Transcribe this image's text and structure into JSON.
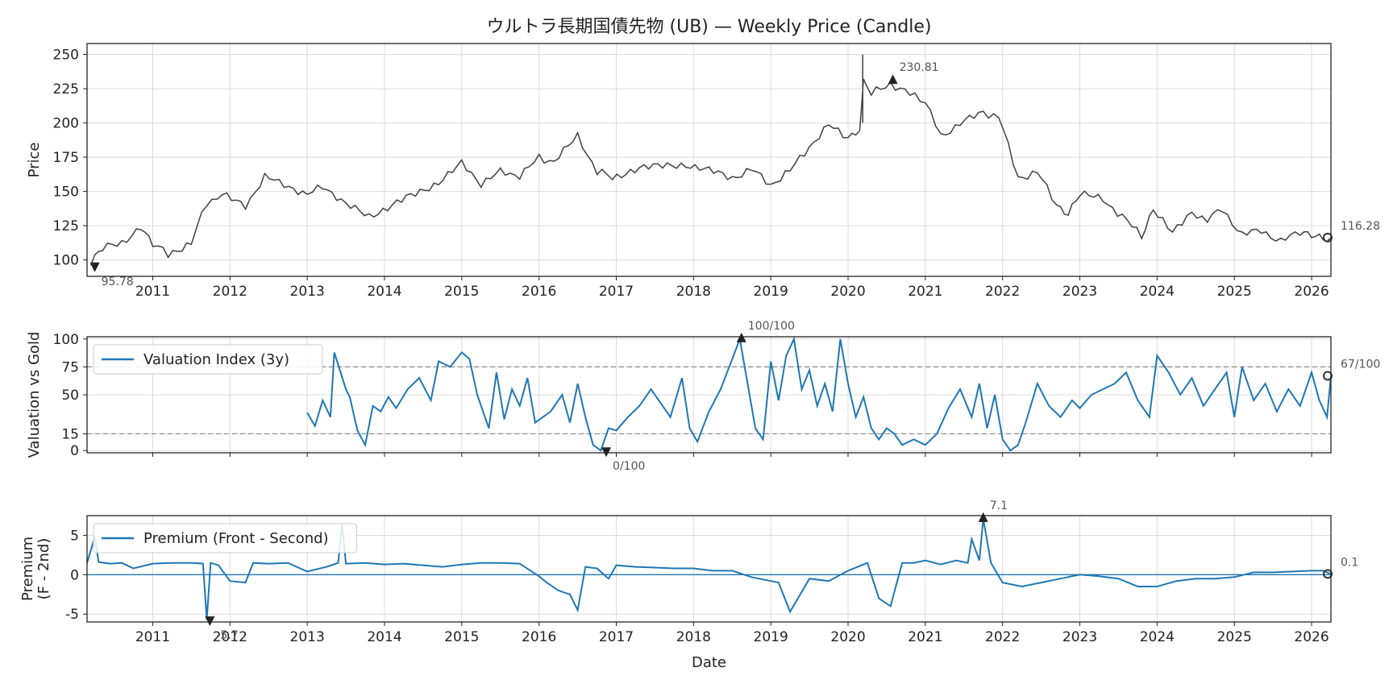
{
  "chart_data": [
    {
      "type": "candlestick",
      "title": "ウルトラ長期国債先物 (UB) — Weekly Price (Candle)",
      "ylabel": "Price",
      "xlabel": "",
      "xlim": [
        2010.15,
        2026.25
      ],
      "ylim": [
        88,
        258
      ],
      "yticks": [
        100,
        125,
        150,
        175,
        200,
        225,
        250
      ],
      "xticks": [
        "2011",
        "2012",
        "2013",
        "2014",
        "2015",
        "2016",
        "2017",
        "2018",
        "2019",
        "2020",
        "2021",
        "2022",
        "2023",
        "2024",
        "2025",
        "2026"
      ],
      "grid": true,
      "color": "#404040",
      "series": [
        {
          "name": "Price",
          "x": [
            2010.2,
            2010.35,
            2010.6,
            2010.85,
            2011.0,
            2011.2,
            2011.5,
            2011.7,
            2011.9,
            2012.2,
            2012.45,
            2012.7,
            2013.0,
            2013.2,
            2013.5,
            2013.8,
            2014.1,
            2014.4,
            2014.7,
            2015.0,
            2015.25,
            2015.5,
            2015.75,
            2016.0,
            2016.2,
            2016.5,
            2016.75,
            2016.95,
            2017.3,
            2017.6,
            2017.9,
            2018.2,
            2018.5,
            2018.75,
            2019.0,
            2019.25,
            2019.5,
            2019.75,
            2020.0,
            2020.15,
            2020.2,
            2020.3,
            2020.55,
            2020.8,
            2021.0,
            2021.2,
            2021.45,
            2021.75,
            2021.95,
            2022.2,
            2022.45,
            2022.7,
            2022.85,
            2023.0,
            2023.3,
            2023.55,
            2023.8,
            2023.95,
            2024.2,
            2024.45,
            2024.65,
            2024.85,
            2025.1,
            2025.35,
            2025.6,
            2025.85,
            2026.0,
            2026.15,
            2026.25
          ],
          "values": [
            97,
            108,
            113,
            123,
            112,
            104,
            113,
            142,
            147,
            140,
            160,
            156,
            147,
            155,
            140,
            132,
            140,
            148,
            157,
            170,
            156,
            164,
            162,
            174,
            172,
            190,
            165,
            160,
            168,
            168,
            170,
            165,
            160,
            166,
            155,
            165,
            183,
            198,
            190,
            195,
            229,
            221,
            229,
            221,
            216,
            190,
            200,
            207,
            205,
            160,
            164,
            140,
            132,
            148,
            144,
            132,
            117,
            135,
            122,
            133,
            130,
            137,
            118,
            122,
            113,
            121,
            117,
            115,
            116.28
          ]
        }
      ],
      "annotations": [
        {
          "label": "230.81",
          "x": 2020.58,
          "y": 230.81,
          "marker": "max"
        },
        {
          "label": "95.78",
          "x": 2010.25,
          "y": 95.78,
          "marker": "min"
        },
        {
          "label": "116.28",
          "x": 2026.25,
          "y": 116.28,
          "marker": "last"
        }
      ]
    },
    {
      "type": "line",
      "ylabel": "Valuation vs Gold",
      "xlim": [
        2010.15,
        2026.25
      ],
      "ylim": [
        -2,
        102
      ],
      "yticks": [
        0,
        15,
        50,
        75,
        100
      ],
      "hlines": [
        15,
        75
      ],
      "grid": true,
      "legend": "top-left",
      "series": [
        {
          "name": "Valuation Index (3y)",
          "color": "#1f77b4",
          "x": [
            2013.0,
            2013.1,
            2013.2,
            2013.3,
            2013.35,
            2013.5,
            2013.55,
            2013.65,
            2013.75,
            2013.85,
            2013.95,
            2014.05,
            2014.15,
            2014.3,
            2014.45,
            2014.6,
            2014.7,
            2014.85,
            2015.0,
            2015.1,
            2015.2,
            2015.35,
            2015.45,
            2015.55,
            2015.65,
            2015.75,
            2015.85,
            2015.95,
            2016.05,
            2016.15,
            2016.3,
            2016.4,
            2016.5,
            2016.6,
            2016.7,
            2016.8,
            2016.9,
            2017.0,
            2017.15,
            2017.3,
            2017.45,
            2017.55,
            2017.7,
            2017.85,
            2017.95,
            2018.05,
            2018.2,
            2018.35,
            2018.5,
            2018.6,
            2018.7,
            2018.8,
            2018.9,
            2019.0,
            2019.1,
            2019.2,
            2019.3,
            2019.4,
            2019.5,
            2019.6,
            2019.7,
            2019.8,
            2019.9,
            2020.0,
            2020.1,
            2020.2,
            2020.3,
            2020.4,
            2020.5,
            2020.6,
            2020.7,
            2020.85,
            2021.0,
            2021.15,
            2021.3,
            2021.45,
            2021.6,
            2021.7,
            2021.8,
            2021.9,
            2022.0,
            2022.1,
            2022.2,
            2022.3,
            2022.45,
            2022.6,
            2022.75,
            2022.9,
            2023.0,
            2023.15,
            2023.3,
            2023.45,
            2023.6,
            2023.75,
            2023.9,
            2024.0,
            2024.15,
            2024.3,
            2024.45,
            2024.6,
            2024.75,
            2024.9,
            2025.0,
            2025.1,
            2025.25,
            2025.4,
            2025.55,
            2025.7,
            2025.85,
            2026.0,
            2026.1,
            2026.2,
            2026.25
          ],
          "values": [
            34,
            22,
            45,
            30,
            88,
            55,
            48,
            18,
            5,
            40,
            35,
            48,
            38,
            55,
            65,
            45,
            80,
            75,
            88,
            82,
            50,
            20,
            70,
            28,
            55,
            40,
            65,
            25,
            30,
            35,
            50,
            25,
            60,
            30,
            5,
            0,
            20,
            18,
            30,
            40,
            55,
            45,
            30,
            65,
            20,
            8,
            35,
            55,
            82,
            100,
            60,
            20,
            10,
            80,
            45,
            85,
            100,
            55,
            72,
            40,
            60,
            35,
            100,
            60,
            30,
            48,
            20,
            10,
            20,
            15,
            5,
            10,
            5,
            15,
            38,
            55,
            30,
            60,
            20,
            50,
            10,
            0,
            5,
            25,
            60,
            40,
            30,
            45,
            38,
            50,
            55,
            60,
            70,
            45,
            30,
            85,
            70,
            50,
            65,
            40,
            55,
            70,
            30,
            75,
            45,
            60,
            35,
            55,
            40,
            70,
            45,
            30,
            67
          ]
        }
      ],
      "annotations": [
        {
          "label": "100/100",
          "x": 2018.62,
          "y": 100,
          "marker": "max"
        },
        {
          "label": "0/100",
          "x": 2016.87,
          "y": 0,
          "marker": "min"
        },
        {
          "label": "67/100",
          "x": 2026.25,
          "y": 67,
          "marker": "last"
        }
      ]
    },
    {
      "type": "line",
      "ylabel": "Premium",
      "ylabel2": "(F - 2nd)",
      "xlabel": "Date",
      "xlim": [
        2010.15,
        2026.25
      ],
      "ylim": [
        -6,
        7.5
      ],
      "yticks": [
        -5,
        0,
        5
      ],
      "xticks": [
        "2011",
        "2012",
        "2013",
        "2014",
        "2015",
        "2016",
        "2017",
        "2018",
        "2019",
        "2020",
        "2021",
        "2022",
        "2023",
        "2024",
        "2025",
        "2026"
      ],
      "hlines": [
        0
      ],
      "grid": true,
      "legend": "top-left",
      "series": [
        {
          "name": "Premium (Front - Second)",
          "color": "#1f77b4",
          "x": [
            2010.15,
            2010.25,
            2010.3,
            2010.45,
            2010.6,
            2010.75,
            2011.0,
            2011.25,
            2011.5,
            2011.65,
            2011.7,
            2011.75,
            2011.85,
            2012.0,
            2012.2,
            2012.3,
            2012.5,
            2012.75,
            2013.0,
            2013.25,
            2013.4,
            2013.45,
            2013.5,
            2013.75,
            2014.0,
            2014.25,
            2014.5,
            2014.75,
            2015.0,
            2015.25,
            2015.5,
            2015.75,
            2016.0,
            2016.1,
            2016.25,
            2016.4,
            2016.5,
            2016.6,
            2016.75,
            2016.9,
            2017.0,
            2017.25,
            2017.5,
            2017.75,
            2018.0,
            2018.25,
            2018.5,
            2018.75,
            2019.0,
            2019.1,
            2019.25,
            2019.5,
            2019.75,
            2020.0,
            2020.25,
            2020.4,
            2020.55,
            2020.7,
            2020.85,
            2021.0,
            2021.2,
            2021.4,
            2021.55,
            2021.6,
            2021.7,
            2021.75,
            2021.85,
            2022.0,
            2022.25,
            2022.5,
            2022.75,
            2023.0,
            2023.25,
            2023.5,
            2023.75,
            2024.0,
            2024.25,
            2024.5,
            2024.75,
            2025.0,
            2025.25,
            2025.5,
            2025.75,
            2026.0,
            2026.15,
            2026.25
          ],
          "values": [
            1.5,
            4.8,
            1.6,
            1.4,
            1.5,
            0.8,
            1.4,
            1.5,
            1.5,
            1.4,
            -5.7,
            1.5,
            1.2,
            -0.8,
            -1.0,
            1.5,
            1.4,
            1.5,
            0.4,
            1.0,
            1.5,
            6.5,
            1.4,
            1.5,
            1.3,
            1.4,
            1.2,
            1.0,
            1.3,
            1.5,
            1.5,
            1.4,
            -0.2,
            -1.0,
            -2.0,
            -2.5,
            -4.5,
            1.0,
            0.8,
            -0.5,
            1.2,
            1.0,
            0.9,
            0.8,
            0.8,
            0.5,
            0.5,
            -0.3,
            -0.8,
            -1.0,
            -4.7,
            -0.5,
            -0.8,
            0.5,
            1.5,
            -3.0,
            -4.0,
            1.5,
            1.5,
            1.8,
            1.3,
            1.8,
            1.5,
            4.5,
            1.8,
            7.1,
            1.5,
            -1.0,
            -1.5,
            -1.0,
            -0.5,
            0.0,
            -0.2,
            -0.5,
            -1.5,
            -1.5,
            -0.8,
            -0.5,
            -0.5,
            -0.3,
            0.3,
            0.3,
            0.4,
            0.5,
            0.5,
            0.1
          ]
        }
      ],
      "annotations": [
        {
          "label": "7.1",
          "x": 2021.75,
          "y": 7.1,
          "marker": "max"
        },
        {
          "label": "-5.7",
          "x": 2011.74,
          "y": -5.7,
          "marker": "min"
        },
        {
          "label": "0.1",
          "x": 2026.25,
          "y": 0.1,
          "marker": "last"
        }
      ]
    }
  ]
}
